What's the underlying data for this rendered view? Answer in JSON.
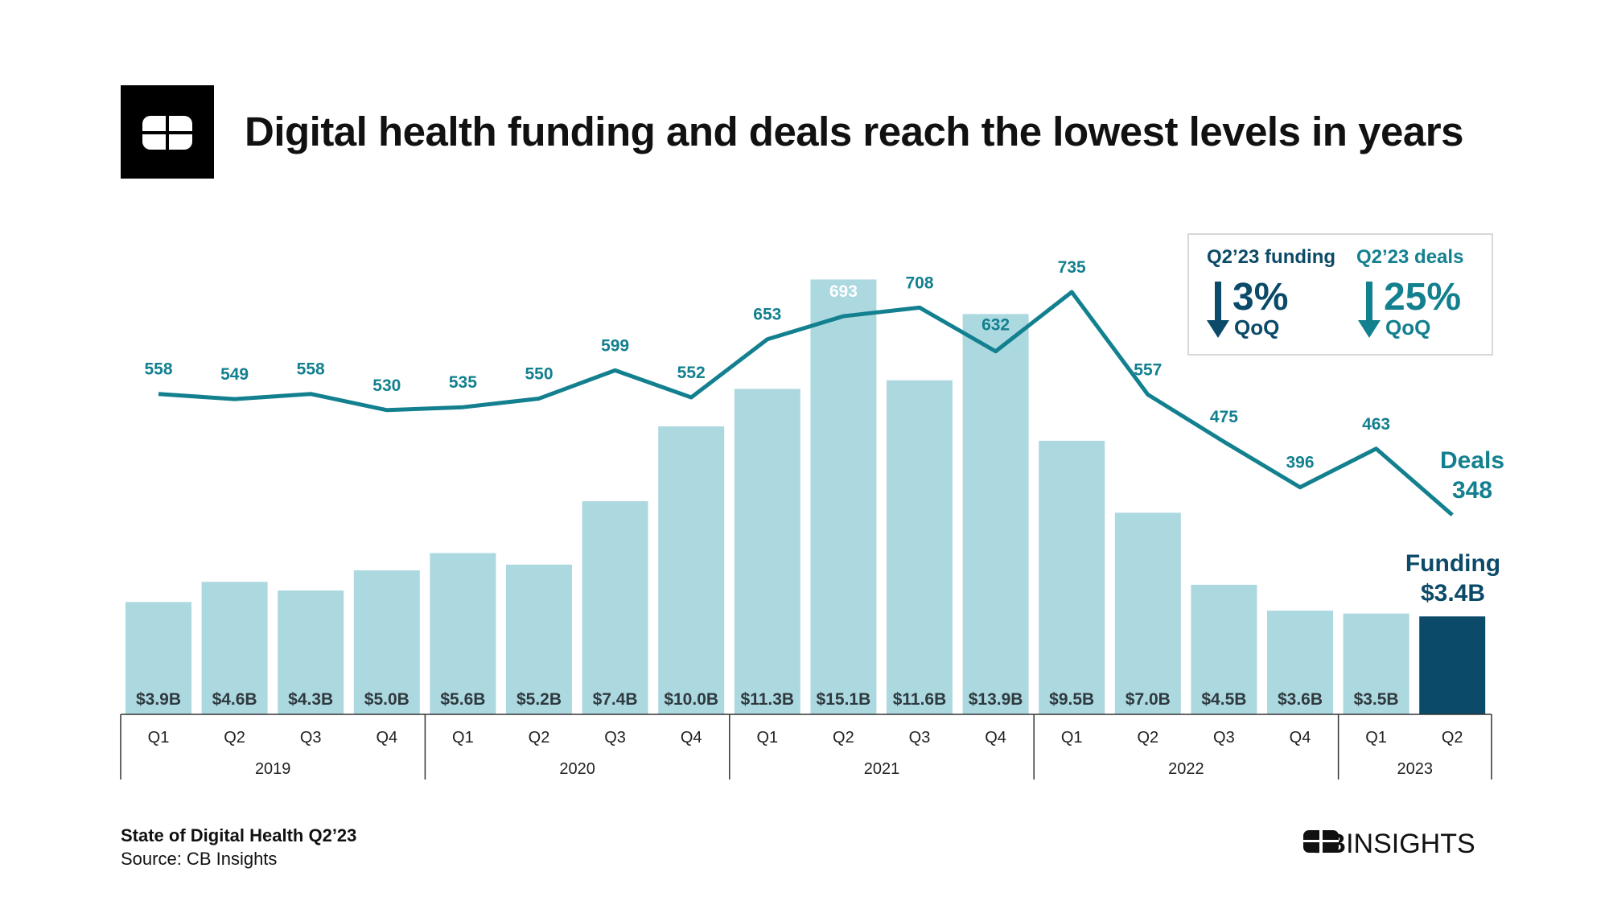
{
  "title": "Digital health funding and deals reach the lowest levels in years",
  "callout": {
    "funding_label": "Q2’23 funding",
    "funding_change": "3%",
    "funding_unit": "QoQ",
    "deals_label": "Q2’23 deals",
    "deals_change": "25%",
    "deals_unit": "QoQ",
    "direction": "down"
  },
  "footer": {
    "report": "State of Digital Health Q2’23",
    "source": "Source: CB Insights",
    "brand": "CBINSIGHTS"
  },
  "colors": {
    "bar": "#acd8e0",
    "bar_highlight": "#0b4a68",
    "line": "#13808f",
    "funding_text": "#0b4a68",
    "deals_text": "#13808f"
  },
  "chart_data": {
    "type": "bar+line",
    "title": "Digital health funding and deals reach the lowest levels in years",
    "categories": [
      "Q1",
      "Q2",
      "Q3",
      "Q4",
      "Q1",
      "Q2",
      "Q3",
      "Q4",
      "Q1",
      "Q2",
      "Q3",
      "Q4",
      "Q1",
      "Q2",
      "Q3",
      "Q4",
      "Q1",
      "Q2"
    ],
    "years": [
      {
        "label": "2019",
        "quarters": 4
      },
      {
        "label": "2020",
        "quarters": 4
      },
      {
        "label": "2021",
        "quarters": 4
      },
      {
        "label": "2022",
        "quarters": 4
      },
      {
        "label": "2023",
        "quarters": 2
      }
    ],
    "series": [
      {
        "name": "Funding",
        "type": "bar",
        "unit": "$B",
        "values": [
          3.9,
          4.6,
          4.3,
          5.0,
          5.6,
          5.2,
          7.4,
          10.0,
          11.3,
          15.1,
          11.6,
          13.9,
          9.5,
          7.0,
          4.5,
          3.6,
          3.5,
          3.4
        ],
        "labels": [
          "$3.9B",
          "$4.6B",
          "$4.3B",
          "$5.0B",
          "$5.6B",
          "$5.2B",
          "$7.4B",
          "$10.0B",
          "$11.3B",
          "$15.1B",
          "$11.6B",
          "$13.9B",
          "$9.5B",
          "$7.0B",
          "$4.5B",
          "$3.6B",
          "$3.5B",
          ""
        ],
        "end_label": "Funding",
        "end_value": "$3.4B"
      },
      {
        "name": "Deals",
        "type": "line",
        "values": [
          558,
          549,
          558,
          530,
          535,
          550,
          599,
          552,
          653,
          693,
          708,
          632,
          735,
          557,
          475,
          396,
          463,
          348
        ],
        "end_label": "Deals",
        "end_value": "348"
      }
    ],
    "legend": "none",
    "grid": false
  }
}
